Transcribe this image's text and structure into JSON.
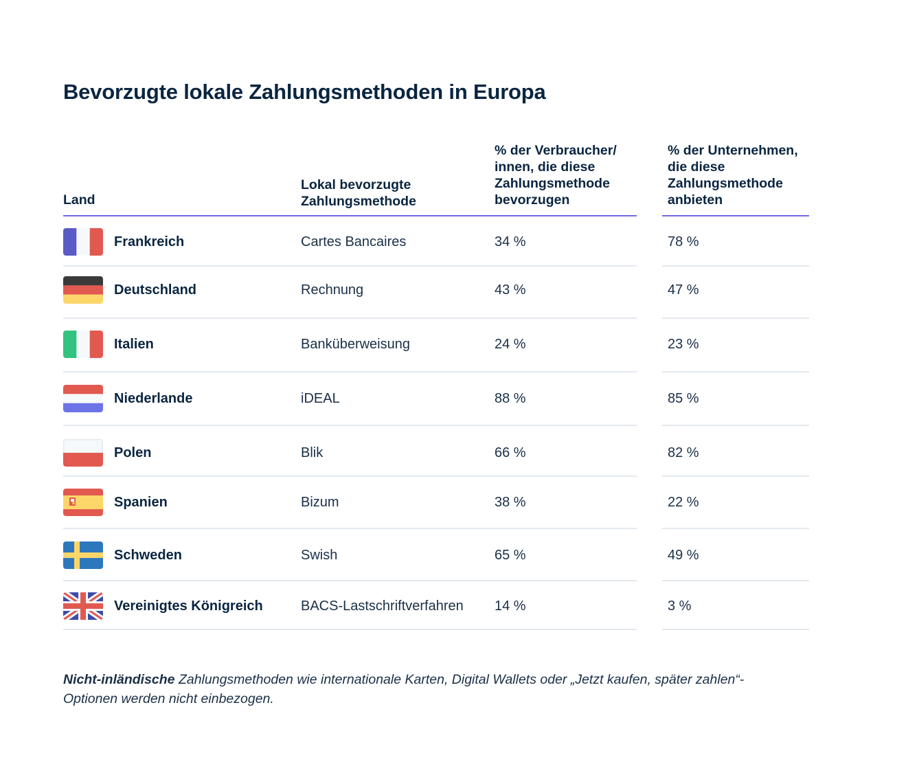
{
  "title": "Bevorzugte lokale Zahlungsmethoden in Europa",
  "headers": {
    "land": "Land",
    "method": "Lokal bevorzugte Zahlungsmethode",
    "consumers": "% der Verbraucher/ innen, die diese Zahlungsmethode bevorzugen",
    "businesses": "% der Unternehmen, die diese Zahlungsmethode anbieten"
  },
  "rows": [
    {
      "country": "Frankreich",
      "method": "Cartes Bancaires",
      "consumers": "34 %",
      "businesses": "78 %",
      "flag": "france-flag-icon"
    },
    {
      "country": "Deutschland",
      "method": "Rechnung",
      "consumers": "43 %",
      "businesses": "47 %",
      "flag": "germany-flag-icon"
    },
    {
      "country": "Italien",
      "method": "Banküberweisung",
      "consumers": "24 %",
      "businesses": "23 %",
      "flag": "italy-flag-icon"
    },
    {
      "country": "Niederlande",
      "method": "iDEAL",
      "consumers": "88 %",
      "businesses": "85 %",
      "flag": "netherlands-flag-icon"
    },
    {
      "country": "Polen",
      "method": "Blik",
      "consumers": "66 %",
      "businesses": "82 %",
      "flag": "poland-flag-icon"
    },
    {
      "country": "Spanien",
      "method": "Bizum",
      "consumers": "38 %",
      "businesses": "22 %",
      "flag": "spain-flag-icon"
    },
    {
      "country": "Schweden",
      "method": "Swish",
      "consumers": "65 %",
      "businesses": "49 %",
      "flag": "sweden-flag-icon"
    },
    {
      "country": "Vereinigtes Königreich",
      "method": "BACS-Lastschriftverfahren",
      "consumers": "14 %",
      "businesses": "3 %",
      "flag": "uk-flag-icon"
    }
  ],
  "footnote": {
    "bold": "Nicht-inländische",
    "text": " Zahlungsmethoden wie internationale Karten, Digital Wallets oder „Jetzt kaufen, später zahlen“-Optionen werden nicht einbezogen."
  },
  "colors": {
    "accent": "#7068e5",
    "text": "#0a2540",
    "rule": "#e3e8ee"
  }
}
